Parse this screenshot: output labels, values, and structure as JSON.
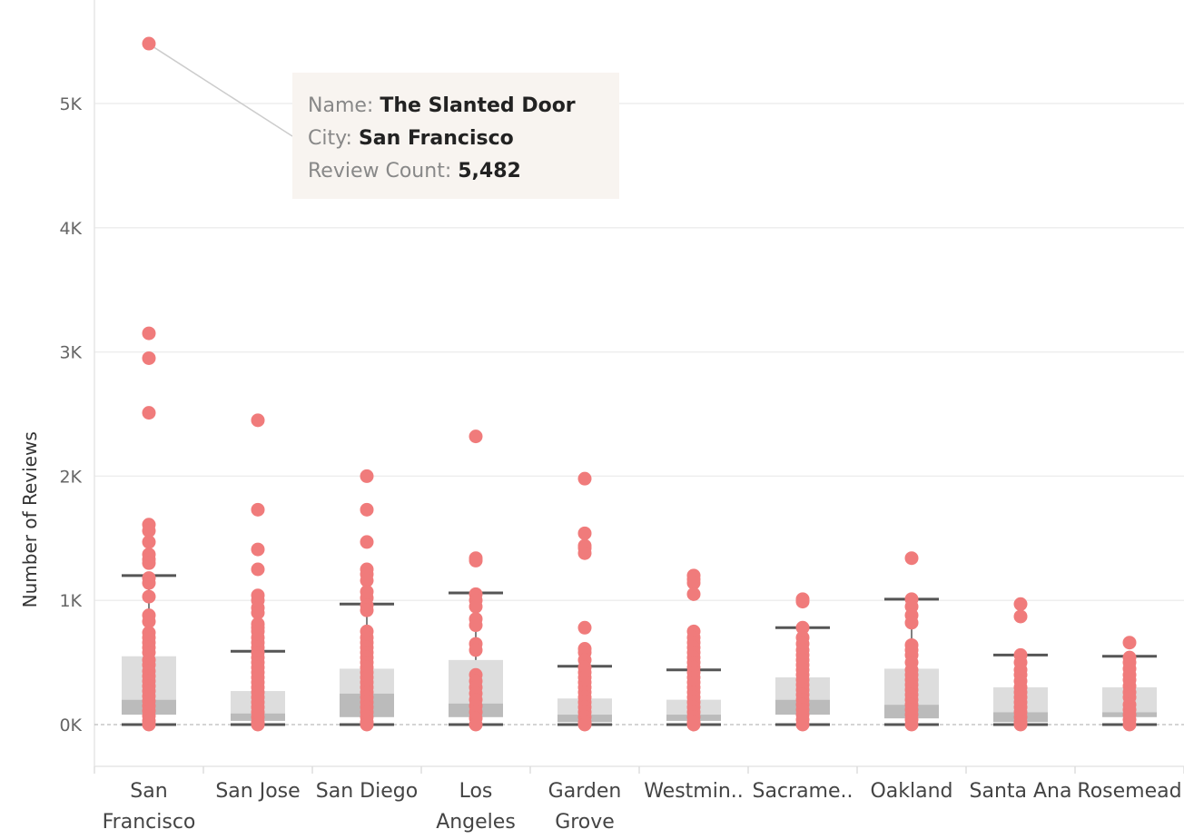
{
  "chart_data": {
    "type": "box_plot_with_points",
    "ylabel": "Number of Reviews",
    "xlabel": "",
    "ylim": [
      -320,
      5750
    ],
    "y_ticks": [
      0,
      1000,
      2000,
      3000,
      4000,
      5000
    ],
    "y_tick_labels": [
      "0K",
      "1K",
      "2K",
      "3K",
      "4K",
      "5K"
    ],
    "grid": true,
    "categories": [
      {
        "name": "San Francisco",
        "label_lines": [
          "San",
          "Francisco"
        ],
        "whisker_low": 0,
        "q1": 80,
        "median": 200,
        "q3": 550,
        "whisker_high": 1200,
        "points": [
          5482,
          3150,
          2950,
          2510,
          1610,
          1560,
          1470,
          1370,
          1330,
          1300,
          1180,
          1140,
          1030,
          880,
          830,
          740,
          700,
          660,
          620,
          580,
          520,
          480,
          430,
          390,
          350,
          310,
          270,
          230,
          190,
          150,
          110,
          70,
          30,
          0
        ]
      },
      {
        "name": "San Jose",
        "label_lines": [
          "San Jose"
        ],
        "whisker_low": 0,
        "q1": 30,
        "median": 90,
        "q3": 270,
        "whisker_high": 590,
        "points": [
          2450,
          1730,
          1410,
          1250,
          1040,
          1000,
          940,
          900,
          810,
          780,
          750,
          700,
          660,
          620,
          580,
          540,
          500,
          460,
          420,
          380,
          340,
          300,
          260,
          220,
          180,
          140,
          100,
          60,
          20,
          0
        ]
      },
      {
        "name": "San Diego",
        "label_lines": [
          "San Diego"
        ],
        "whisker_low": 0,
        "q1": 60,
        "median": 250,
        "q3": 450,
        "whisker_high": 970,
        "points": [
          2000,
          1730,
          1470,
          1250,
          1210,
          1160,
          1070,
          1020,
          960,
          920,
          750,
          700,
          660,
          620,
          580,
          540,
          500,
          460,
          420,
          380,
          340,
          300,
          260,
          220,
          180,
          140,
          100,
          60,
          20,
          0
        ]
      },
      {
        "name": "Los Angeles",
        "label_lines": [
          "Los",
          "Angeles"
        ],
        "whisker_low": 0,
        "q1": 60,
        "median": 170,
        "q3": 520,
        "whisker_high": 1060,
        "points": [
          2320,
          1340,
          1320,
          1050,
          1000,
          950,
          850,
          800,
          650,
          600,
          400,
          350,
          300,
          250,
          200,
          150,
          100,
          50,
          0
        ]
      },
      {
        "name": "Garden Grove",
        "label_lines": [
          "Garden",
          "Grove"
        ],
        "whisker_low": 0,
        "q1": 20,
        "median": 80,
        "q3": 210,
        "whisker_high": 470,
        "points": [
          1980,
          1540,
          1440,
          1420,
          1380,
          780,
          610,
          580,
          520,
          460,
          420,
          380,
          340,
          300,
          260,
          220,
          180,
          140,
          100,
          60,
          20,
          0
        ]
      },
      {
        "name": "Westmin..",
        "label_lines": [
          "Westmin.."
        ],
        "whisker_low": 0,
        "q1": 30,
        "median": 80,
        "q3": 200,
        "whisker_high": 440,
        "points": [
          1200,
          1170,
          1140,
          1050,
          750,
          700,
          660,
          620,
          580,
          540,
          500,
          460,
          420,
          380,
          340,
          300,
          260,
          220,
          180,
          140,
          100,
          60,
          20,
          0
        ]
      },
      {
        "name": "Sacrame..",
        "label_lines": [
          "Sacrame.."
        ],
        "whisker_low": 0,
        "q1": 80,
        "median": 200,
        "q3": 380,
        "whisker_high": 780,
        "points": [
          1010,
          990,
          780,
          700,
          650,
          600,
          560,
          520,
          480,
          440,
          400,
          360,
          320,
          280,
          240,
          200,
          160,
          120,
          80,
          40,
          0
        ]
      },
      {
        "name": "Oakland",
        "label_lines": [
          "Oakland"
        ],
        "whisker_low": 0,
        "q1": 50,
        "median": 160,
        "q3": 450,
        "whisker_high": 1010,
        "points": [
          1340,
          1010,
          950,
          880,
          820,
          640,
          600,
          560,
          500,
          440,
          400,
          360,
          320,
          280,
          240,
          200,
          160,
          120,
          80,
          40,
          0
        ]
      },
      {
        "name": "Santa Ana",
        "label_lines": [
          "Santa Ana"
        ],
        "whisker_low": 0,
        "q1": 20,
        "median": 100,
        "q3": 300,
        "whisker_high": 560,
        "points": [
          970,
          870,
          560,
          500,
          440,
          400,
          350,
          300,
          260,
          220,
          180,
          140,
          100,
          60,
          20,
          0
        ]
      },
      {
        "name": "Rosemead",
        "label_lines": [
          "Rosemead"
        ],
        "whisker_low": 0,
        "q1": 60,
        "median": 100,
        "q3": 300,
        "whisker_high": 550,
        "points": [
          660,
          540,
          500,
          450,
          400,
          360,
          310,
          260,
          220,
          160,
          120,
          80,
          40,
          0
        ]
      }
    ],
    "highlighted_point": {
      "category": "San Francisco",
      "value": 5482
    },
    "colors": {
      "points": "#f07b7b",
      "box_upper": "#dddddd",
      "box_lower": "#bbbbbb",
      "whisker": "#555555",
      "grid": "#eeeeee",
      "zero_line": "#bbbbbb"
    }
  },
  "tooltip": {
    "name_label": "Name:",
    "name_value": "The Slanted Door",
    "city_label": "City:",
    "city_value": "San Francisco",
    "count_label": "Review Count:",
    "count_value": "5,482"
  }
}
